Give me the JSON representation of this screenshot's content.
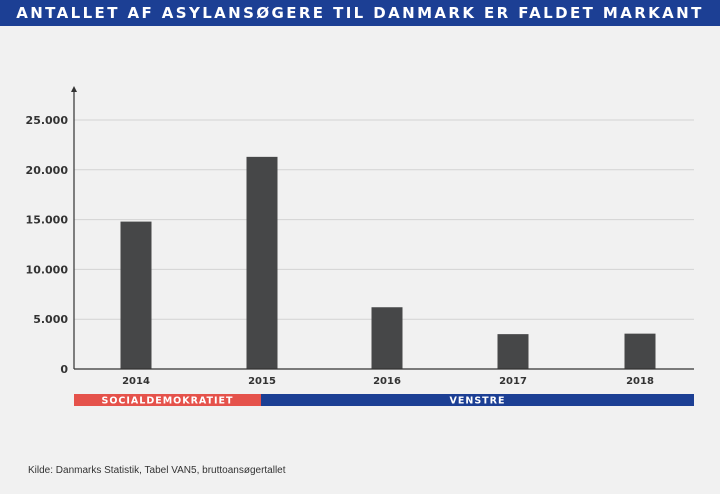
{
  "title": "ANTALLET AF ASYLANSØGERE TIL DANMARK ER FALDET MARKANT",
  "source": "Kilde: Danmarks Statistik, Tabel VAN5, bruttoansøgertallet",
  "colors": {
    "title_background": "#1c3f94",
    "bar": "#464748",
    "socialdemokratiet": "#e5524b",
    "venstre": "#1c3f94",
    "background": "#f1f1f1"
  },
  "chart_data": {
    "type": "bar",
    "categories": [
      "2014",
      "2015",
      "2016",
      "2017",
      "2018"
    ],
    "values": [
      14800,
      21300,
      6200,
      3500,
      3550
    ],
    "ylim": [
      0,
      25000
    ],
    "yticks": [
      0,
      5000,
      10000,
      15000,
      20000,
      25000
    ],
    "ytick_labels": [
      "0",
      "5.000",
      "10.000",
      "15.000",
      "20.000",
      "25.000"
    ],
    "grid": true,
    "xlabel": "",
    "ylabel": "",
    "government_bands": [
      {
        "label": "SOCIALDEMOKRATIET",
        "from": "2014",
        "to": "mid-2015",
        "color": "#e5524b"
      },
      {
        "label": "VENSTRE",
        "from": "mid-2015",
        "to": "2018",
        "color": "#1c3f94"
      }
    ]
  }
}
